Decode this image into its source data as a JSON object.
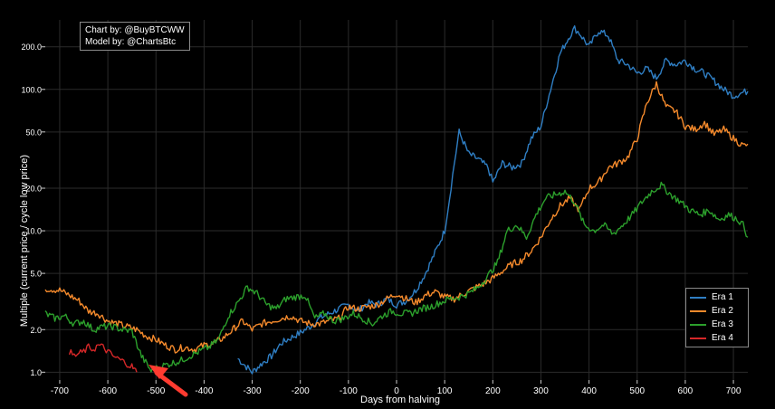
{
  "chart_data": {
    "type": "line",
    "xlabel": "Days from halving",
    "ylabel": "Multiple (current price / cycle low price)",
    "y_scale": "log",
    "xlim": [
      -730,
      730
    ],
    "ylim": [
      0.88,
      310
    ],
    "x_ticks": [
      -700,
      -600,
      -500,
      -400,
      -300,
      -200,
      -100,
      0,
      100,
      200,
      300,
      400,
      500,
      600,
      700
    ],
    "y_ticks": [
      1.0,
      2.0,
      5.0,
      10.0,
      20.0,
      50.0,
      100.0,
      200.0
    ],
    "grid": true,
    "legend_position": "bottom-right",
    "credits": [
      "Chart by: @BuyBTCWW",
      "Model by: @ChartsBtc"
    ],
    "annotation": "arrow pointing to about day -510 near multiple 1.0",
    "series": [
      {
        "name": "Era 1",
        "color": "#2f7ec3",
        "x": [
          -330,
          -300,
          -280,
          -260,
          -240,
          -220,
          -200,
          -180,
          -160,
          -140,
          -120,
          -100,
          -80,
          -60,
          -40,
          -20,
          0,
          20,
          40,
          60,
          80,
          100,
          110,
          120,
          130,
          150,
          170,
          190,
          200,
          220,
          240,
          260,
          280,
          300,
          320,
          340,
          360,
          370,
          380,
          400,
          420,
          440,
          460,
          480,
          500,
          520,
          540,
          560,
          580,
          600,
          620,
          640,
          660,
          680,
          700,
          720,
          730
        ],
        "y": [
          1.25,
          1.0,
          1.15,
          1.3,
          1.6,
          1.75,
          1.9,
          2.1,
          2.4,
          2.6,
          2.8,
          3.0,
          2.7,
          3.1,
          3.0,
          3.3,
          3.0,
          3.2,
          3.8,
          5.0,
          7.0,
          10.0,
          17.0,
          30.0,
          50.0,
          35.0,
          32.0,
          28.0,
          22.0,
          30.0,
          28.0,
          30.0,
          45.0,
          55.0,
          100.0,
          180.0,
          240.0,
          270.0,
          250.0,
          200.0,
          260.0,
          240.0,
          160.0,
          150.0,
          130.0,
          140.0,
          120.0,
          160.0,
          150.0,
          160.0,
          140.0,
          130.0,
          115.0,
          100.0,
          90.0,
          95.0,
          97.0
        ]
      },
      {
        "name": "Era 2",
        "color": "#f58a2c",
        "x": [
          -730,
          -700,
          -680,
          -660,
          -640,
          -620,
          -600,
          -580,
          -560,
          -540,
          -520,
          -500,
          -480,
          -460,
          -440,
          -420,
          -400,
          -380,
          -360,
          -340,
          -320,
          -300,
          -280,
          -260,
          -240,
          -220,
          -200,
          -180,
          -160,
          -140,
          -120,
          -100,
          -80,
          -60,
          -40,
          -20,
          0,
          20,
          40,
          60,
          80,
          100,
          120,
          140,
          160,
          180,
          200,
          220,
          240,
          260,
          280,
          300,
          320,
          340,
          360,
          380,
          400,
          420,
          440,
          460,
          480,
          500,
          520,
          540,
          560,
          580,
          600,
          620,
          640,
          660,
          680,
          700,
          720,
          730
        ],
        "y": [
          3.9,
          3.8,
          3.5,
          3.2,
          2.7,
          2.6,
          2.3,
          2.2,
          2.1,
          2.0,
          1.8,
          1.7,
          1.55,
          1.45,
          1.5,
          1.45,
          1.55,
          1.6,
          1.75,
          2.0,
          2.3,
          2.0,
          2.2,
          2.3,
          2.4,
          2.5,
          2.3,
          2.2,
          2.2,
          2.3,
          2.4,
          2.9,
          2.8,
          2.9,
          3.0,
          3.3,
          3.6,
          3.3,
          3.1,
          3.5,
          3.7,
          3.4,
          3.3,
          3.6,
          3.9,
          4.2,
          4.6,
          5.2,
          5.8,
          6.2,
          7.2,
          9.0,
          12.0,
          15.0,
          17.0,
          14.0,
          20.0,
          22.0,
          28.0,
          30.0,
          33.0,
          45.0,
          80.0,
          110.0,
          75.0,
          70.0,
          55.0,
          52.0,
          58.0,
          48.0,
          52.0,
          45.0,
          40.0,
          41.0
        ]
      },
      {
        "name": "Era 3",
        "color": "#2ca02c",
        "x": [
          -730,
          -710,
          -690,
          -670,
          -650,
          -630,
          -610,
          -590,
          -570,
          -550,
          -530,
          -510,
          -490,
          -470,
          -450,
          -430,
          -410,
          -390,
          -370,
          -350,
          -330,
          -310,
          -290,
          -270,
          -250,
          -230,
          -210,
          -190,
          -170,
          -150,
          -130,
          -110,
          -90,
          -70,
          -50,
          -30,
          -10,
          10,
          30,
          50,
          70,
          90,
          110,
          130,
          150,
          170,
          190,
          210,
          230,
          250,
          270,
          290,
          310,
          330,
          350,
          370,
          390,
          410,
          430,
          450,
          470,
          490,
          510,
          530,
          550,
          570,
          590,
          610,
          630,
          650,
          670,
          690,
          710,
          720,
          730
        ],
        "y": [
          2.6,
          2.4,
          2.5,
          2.2,
          2.3,
          2.0,
          2.1,
          2.1,
          2.0,
          1.95,
          1.3,
          1.02,
          1.1,
          1.15,
          1.2,
          1.3,
          1.4,
          1.5,
          1.7,
          2.5,
          3.1,
          4.0,
          3.6,
          3.0,
          2.8,
          3.3,
          3.4,
          3.5,
          2.4,
          2.6,
          2.3,
          2.4,
          2.6,
          2.4,
          2.2,
          2.5,
          2.7,
          2.6,
          2.6,
          2.8,
          2.9,
          3.1,
          3.3,
          3.4,
          3.6,
          4.0,
          4.8,
          6.0,
          10.0,
          11.0,
          9.0,
          13.0,
          17.0,
          18.0,
          19.0,
          16.0,
          11.0,
          10.0,
          11.0,
          9.5,
          11.0,
          13.0,
          16.0,
          19.0,
          21.0,
          18.0,
          16.0,
          14.0,
          13.0,
          14.0,
          12.0,
          13.0,
          12.0,
          11.0,
          9.0
        ]
      },
      {
        "name": "Era 4",
        "color": "#d62728",
        "x": [
          -680,
          -670,
          -660,
          -650,
          -640,
          -630,
          -620,
          -610,
          -600,
          -590,
          -580,
          -570,
          -560,
          -550,
          -545,
          -540
        ],
        "y": [
          1.4,
          1.3,
          1.35,
          1.4,
          1.5,
          1.45,
          1.55,
          1.5,
          1.4,
          1.3,
          1.25,
          1.2,
          1.15,
          1.1,
          1.05,
          1.0
        ]
      }
    ]
  }
}
